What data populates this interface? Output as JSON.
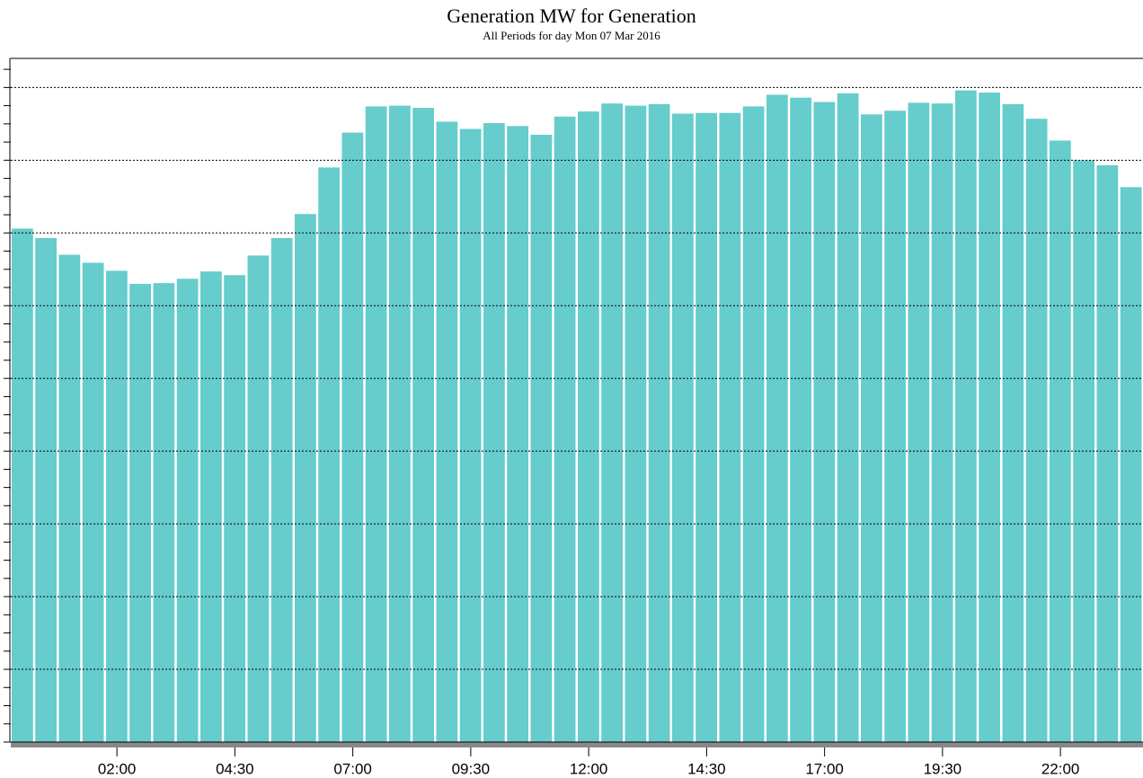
{
  "chart_data": {
    "type": "bar",
    "title": "Generation MW for Generation",
    "subtitle": "All Periods for day Mon 07 Mar 2016",
    "categories": [
      null,
      null,
      null,
      null,
      "02:00",
      null,
      null,
      null,
      null,
      "04:30",
      null,
      null,
      null,
      null,
      "07:00",
      null,
      null,
      null,
      null,
      "09:30",
      null,
      null,
      null,
      null,
      "12:00",
      null,
      null,
      null,
      null,
      "14:30",
      null,
      null,
      null,
      null,
      "17:00",
      null,
      null,
      null,
      null,
      "19:30",
      null,
      null,
      null,
      null,
      "22:00",
      null,
      null,
      null
    ],
    "values": [
      7.06,
      6.93,
      6.7,
      6.59,
      6.48,
      6.3,
      6.31,
      6.37,
      6.47,
      6.42,
      6.69,
      6.93,
      7.26,
      7.9,
      8.38,
      8.74,
      8.75,
      8.72,
      8.53,
      8.43,
      8.51,
      8.47,
      8.35,
      8.6,
      8.67,
      8.78,
      8.75,
      8.77,
      8.64,
      8.65,
      8.65,
      8.74,
      8.9,
      8.86,
      8.8,
      8.92,
      8.63,
      8.68,
      8.79,
      8.78,
      8.96,
      8.93,
      8.77,
      8.57,
      8.27,
      8.0,
      7.93,
      7.63
    ],
    "color": "#66cccc",
    "ylim": [
      0,
      9.4
    ],
    "yticks": [
      0,
      0.25,
      0.5,
      0.75,
      1,
      1.25,
      1.5,
      1.75,
      2,
      2.25,
      2.5,
      2.75,
      3,
      3.25,
      3.5,
      3.75,
      4,
      4.25,
      4.5,
      4.75,
      5,
      5.25,
      5.5,
      5.75,
      6,
      6.25,
      6.5,
      6.75,
      7,
      7.25,
      7.5,
      7.75,
      8,
      8.25,
      8.5,
      8.75,
      9,
      9.25
    ],
    "grid": true
  }
}
